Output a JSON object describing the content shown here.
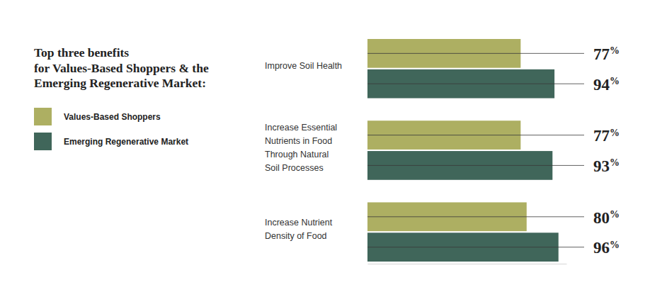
{
  "chart_data": {
    "type": "bar",
    "title": "Top three benefits\nfor Values-Based Shoppers & the\nEmerging Regenerative Market:",
    "orientation": "horizontal",
    "categories": [
      "Improve Soil Health",
      "Increase Essential Nutrients in Food Through Natural Soil Processes",
      "Increase Nutrient Density of Food"
    ],
    "series": [
      {
        "name": "Values-Based Shoppers",
        "color": "#adaf62",
        "values": [
          77,
          77,
          80
        ],
        "value_labels": [
          "77%",
          "77%",
          "80%"
        ]
      },
      {
        "name": "Emerging Regenerative Market",
        "color": "#40665a",
        "values": [
          94,
          93,
          96
        ],
        "value_labels": [
          "94%",
          "93%",
          "96%"
        ]
      }
    ],
    "xlim": [
      0,
      100
    ],
    "xticks": [],
    "tick_labels": false,
    "data_labels": true,
    "legend": "left",
    "grid": false
  }
}
